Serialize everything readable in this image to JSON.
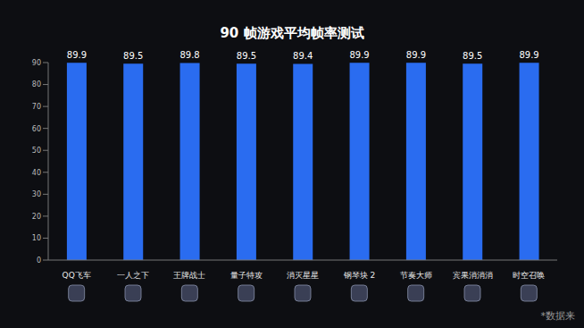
{
  "chart_data": {
    "type": "bar",
    "title": "90 帧游戏平均帧率测试",
    "categories": [
      "QQ飞车",
      "一人之下",
      "王牌战士",
      "量子特攻",
      "消灭星星",
      "钢琴块 2",
      "节奏大师",
      "宾果消消消",
      "时空召唤"
    ],
    "values": [
      89.9,
      89.5,
      89.8,
      89.5,
      89.4,
      89.9,
      89.9,
      89.5,
      89.9
    ],
    "color": "#2a6cf0",
    "ylim": [
      0,
      90
    ],
    "yticks": [
      0,
      10,
      20,
      30,
      40,
      50,
      60,
      70,
      80,
      90
    ],
    "grid": false,
    "data_labels": true,
    "footnote": "*数据来"
  }
}
